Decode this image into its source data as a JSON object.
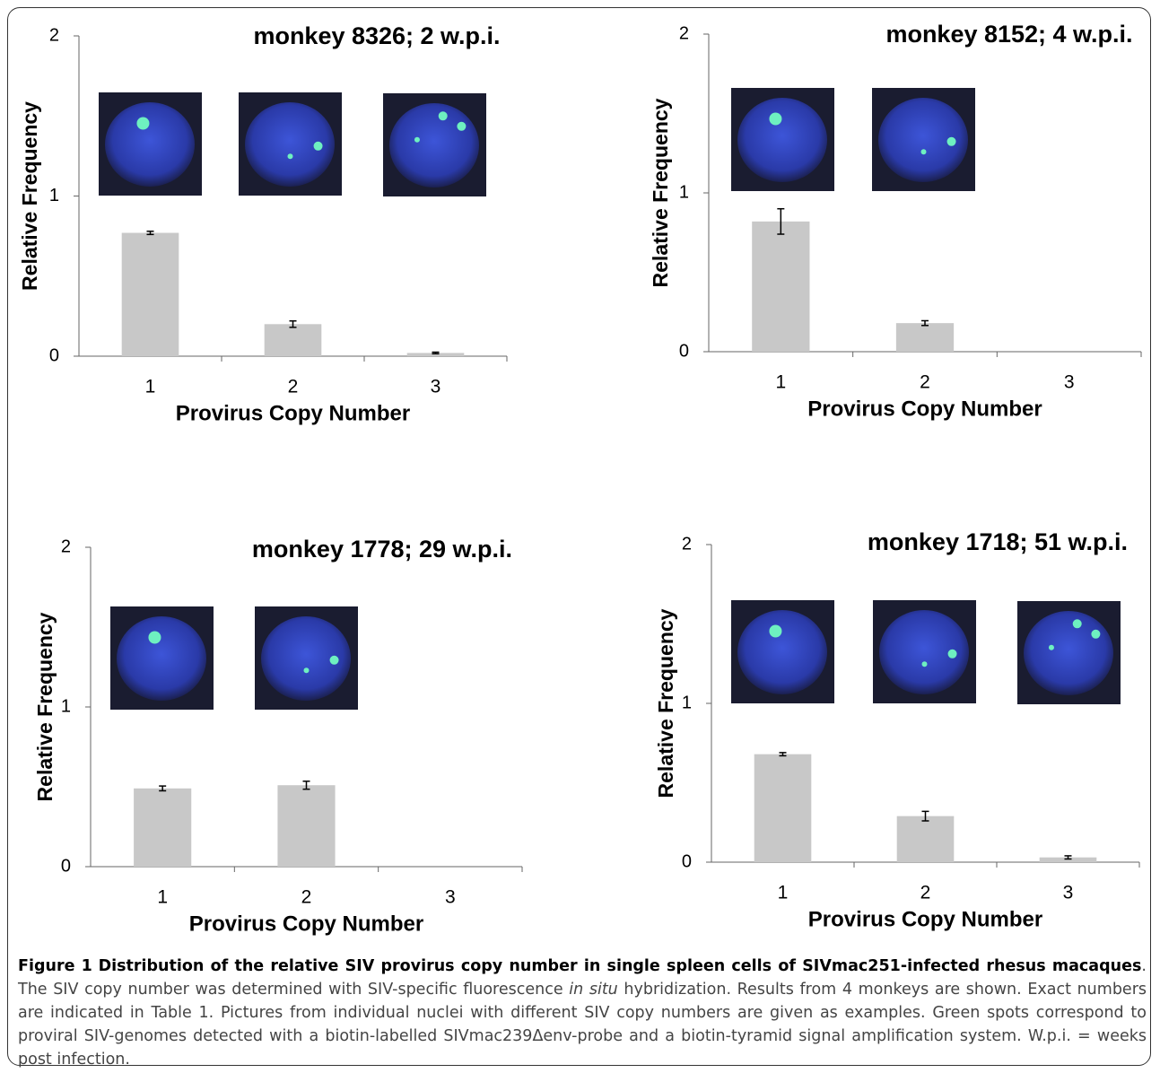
{
  "chart_data": [
    {
      "type": "bar",
      "title": "monkey 8326; 2 w.p.i.",
      "x_label": "Provirus Copy Number",
      "y_label": "Relative Frequency",
      "categories": [
        "1",
        "2",
        "3"
      ],
      "values": [
        0.77,
        0.2,
        0.02
      ],
      "errors": [
        0.01,
        0.02,
        0.005
      ],
      "color": "#c8c8c8",
      "ylim": [
        0,
        2
      ],
      "yticks": [
        0,
        1,
        2
      ]
    },
    {
      "type": "bar",
      "title": "monkey 8152; 4 w.p.i.",
      "x_label": "Provirus Copy Number",
      "y_label": "Relative Frequency",
      "categories": [
        "1",
        "2",
        "3"
      ],
      "values": [
        0.82,
        0.18,
        0
      ],
      "errors": [
        0.08,
        0.015,
        0
      ],
      "color": "#c8c8c8",
      "ylim": [
        0,
        2
      ],
      "yticks": [
        0,
        1,
        2
      ]
    },
    {
      "type": "bar",
      "title": "monkey 1778; 29 w.p.i.",
      "x_label": "Provirus Copy Number",
      "y_label": "Relative Frequency",
      "categories": [
        "1",
        "2",
        "3"
      ],
      "values": [
        0.49,
        0.51,
        0
      ],
      "errors": [
        0.015,
        0.025,
        0
      ],
      "color": "#c8c8c8",
      "ylim": [
        0,
        2
      ],
      "yticks": [
        0,
        1,
        2
      ]
    },
    {
      "type": "bar",
      "title": "monkey 1718; 51 w.p.i.",
      "x_label": "Provirus Copy Number",
      "y_label": "Relative Frequency",
      "categories": [
        "1",
        "2",
        "3"
      ],
      "values": [
        0.68,
        0.29,
        0.03
      ],
      "errors": [
        0.01,
        0.03,
        0.01
      ],
      "color": "#c8c8c8",
      "ylim": [
        0,
        2
      ],
      "yticks": [
        0,
        1,
        2
      ]
    }
  ],
  "caption": {
    "label": "Figure 1",
    "title": "Distribution of the relative SIV provirus copy number in single spleen cells of SIVmac251-infected rhesus macaques",
    "text": [
      ". The SIV copy number was determined with SIV-specific fluorescence ",
      "in situ",
      " hybridization. Results from 4 monkeys are shown. Exact numbers are indicated in Table 1. Pictures from individual nuclei with different SIV copy numbers are given as examples. Green spots correspond to proviral SIV-genomes detected with a biotin-labelled SIVmac239Δenv-probe and a biotin-tyramid signal amplification system. W.p.i. = weeks post infection."
    ]
  }
}
